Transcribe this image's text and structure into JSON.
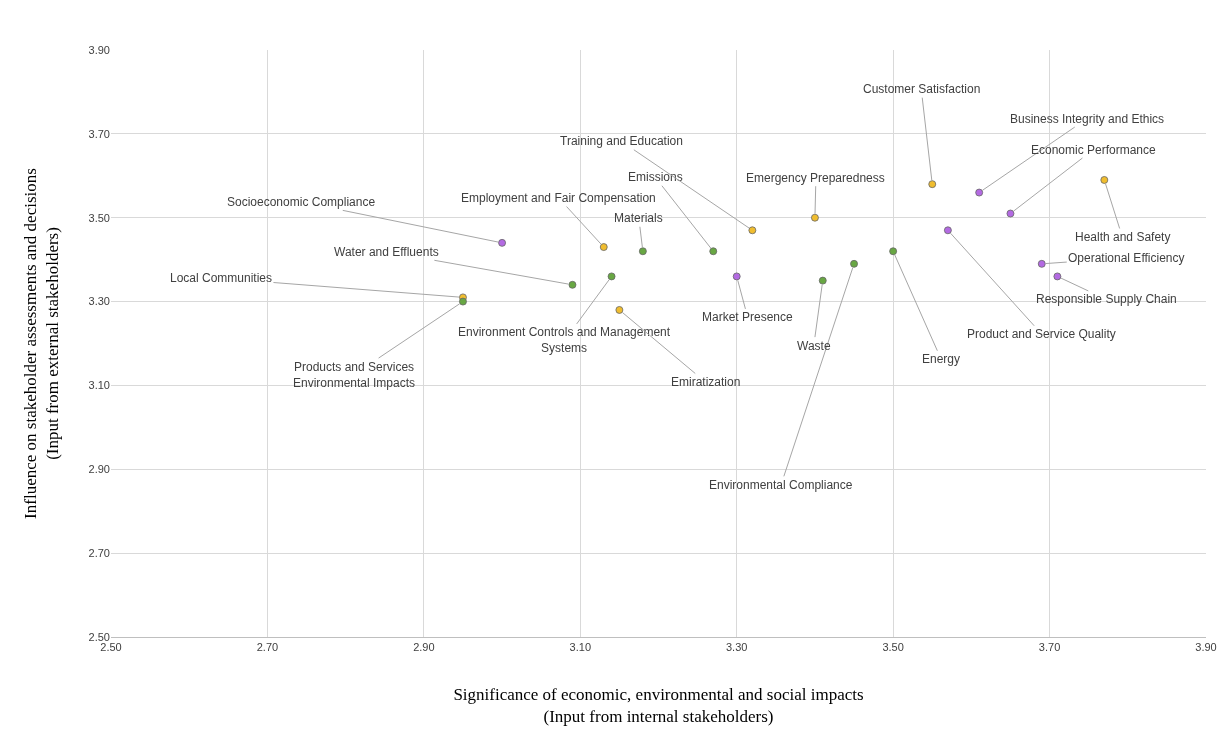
{
  "chart_data": {
    "type": "scatter",
    "xlabel": "Significance of economic, environmental and social impacts\n(Input from internal stakeholders)",
    "ylabel": "Influence on stakeholder assessments and decisions\n(Input from external stakeholders)",
    "xlim": [
      2.5,
      3.9
    ],
    "ylim": [
      2.5,
      3.9
    ],
    "xticks": [
      {
        "value": 2.5,
        "label": "2.50"
      },
      {
        "value": 2.7,
        "label": "2.70"
      },
      {
        "value": 2.9,
        "label": "2.90"
      },
      {
        "value": 3.1,
        "label": "3.10"
      },
      {
        "value": 3.3,
        "label": "3.30"
      },
      {
        "value": 3.5,
        "label": "3.50"
      },
      {
        "value": 3.7,
        "label": "3.70"
      },
      {
        "value": 3.9,
        "label": "3.90"
      }
    ],
    "yticks": [
      {
        "value": 2.5,
        "label": "2.50"
      },
      {
        "value": 2.7,
        "label": "2.70"
      },
      {
        "value": 2.9,
        "label": "2.90"
      },
      {
        "value": 3.1,
        "label": "3.10"
      },
      {
        "value": 3.3,
        "label": "3.30"
      },
      {
        "value": 3.5,
        "label": "3.50"
      },
      {
        "value": 3.7,
        "label": "3.70"
      },
      {
        "value": 3.9,
        "label": "3.90"
      }
    ],
    "grid": true,
    "legend": false,
    "marker": "circle",
    "x": [
      3.0,
      3.13,
      3.18,
      3.27,
      3.32,
      3.4,
      3.55,
      3.61,
      3.65,
      3.77,
      3.57,
      3.5,
      3.45,
      3.41,
      3.3,
      3.69,
      3.71,
      3.09,
      3.14,
      3.15,
      2.95,
      2.95
    ],
    "values": [
      3.44,
      3.43,
      3.42,
      3.42,
      3.47,
      3.5,
      3.58,
      3.56,
      3.51,
      3.59,
      3.47,
      3.42,
      3.39,
      3.35,
      3.36,
      3.39,
      3.36,
      3.34,
      3.36,
      3.28,
      3.31,
      3.3
    ],
    "colors": [
      "#b36ae2",
      "#f0bd2f",
      "#68a743",
      "#68a743",
      "#f0bd2f",
      "#f0bd2f",
      "#f0bd2f",
      "#b36ae2",
      "#b36ae2",
      "#f0bd2f",
      "#b36ae2",
      "#68a743",
      "#68a743",
      "#68a743",
      "#b36ae2",
      "#b36ae2",
      "#b36ae2",
      "#68a743",
      "#68a743",
      "#f0bd2f",
      "#f0bd2f",
      "#68a743"
    ],
    "annotations": [
      {
        "text": "Socioeconomic Compliance",
        "x": 3.0,
        "y": 3.44
      },
      {
        "text": "Employment and Fair Compensation",
        "x": 3.13,
        "y": 3.43
      },
      {
        "text": "Materials",
        "x": 3.18,
        "y": 3.42
      },
      {
        "text": "Emissions",
        "x": 3.27,
        "y": 3.42
      },
      {
        "text": "Training and Education",
        "x": 3.32,
        "y": 3.47
      },
      {
        "text": "Emergency Preparedness",
        "x": 3.4,
        "y": 3.5
      },
      {
        "text": "Customer Satisfaction",
        "x": 3.55,
        "y": 3.58
      },
      {
        "text": "Business Integrity and Ethics",
        "x": 3.61,
        "y": 3.56
      },
      {
        "text": "Economic Performance",
        "x": 3.65,
        "y": 3.51
      },
      {
        "text": "Health and Safety",
        "x": 3.77,
        "y": 3.59
      },
      {
        "text": "Product and Service Quality",
        "x": 3.57,
        "y": 3.47
      },
      {
        "text": "Energy",
        "x": 3.5,
        "y": 3.42
      },
      {
        "text": "Environmental Compliance",
        "x": 3.45,
        "y": 3.39
      },
      {
        "text": "Waste",
        "x": 3.41,
        "y": 3.35
      },
      {
        "text": "Market Presence",
        "x": 3.3,
        "y": 3.36
      },
      {
        "text": "Operational Efficiency",
        "x": 3.69,
        "y": 3.39
      },
      {
        "text": "Responsible Supply Chain",
        "x": 3.71,
        "y": 3.36
      },
      {
        "text": "Water and Effluents",
        "x": 3.09,
        "y": 3.34
      },
      {
        "text": "Environment Controls and Management\nSystems",
        "x": 3.14,
        "y": 3.36
      },
      {
        "text": "Emiratization",
        "x": 3.15,
        "y": 3.28
      },
      {
        "text": "Local Communities",
        "x": 2.95,
        "y": 3.31
      },
      {
        "text": "Products and Services\nEnvironmental Impacts",
        "x": 2.95,
        "y": 3.3
      }
    ]
  }
}
